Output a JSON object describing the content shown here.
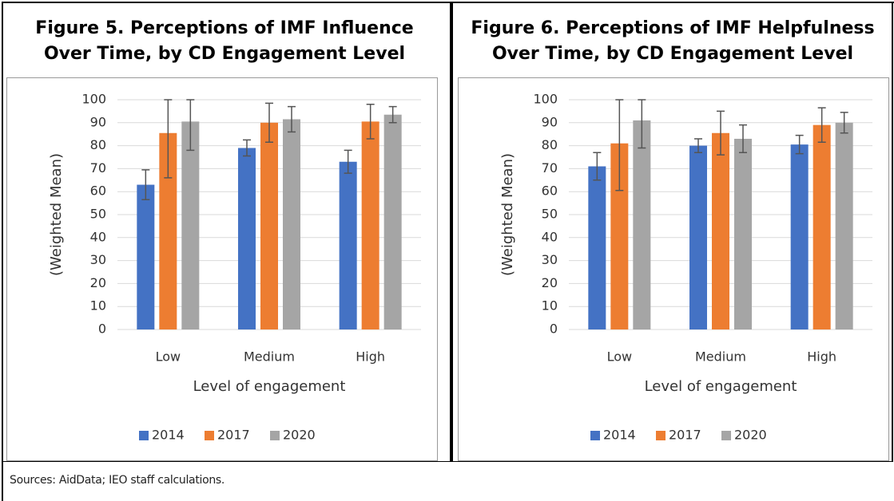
{
  "chart_data": [
    {
      "type": "bar",
      "title": "Figure 5. Perceptions of IMF Influence\nOver Time, by CD Engagement Level",
      "y_label": "(Weighted Mean)",
      "x_label": "Level of engagement",
      "categories": [
        "Low",
        "Medium",
        "High"
      ],
      "series": [
        {
          "name": "2014",
          "color": "#4472c4",
          "values": [
            63,
            79,
            73
          ],
          "errors": [
            6.5,
            3.5,
            5
          ]
        },
        {
          "name": "2017",
          "color": "#ed7d31",
          "values": [
            85.5,
            90,
            90.5
          ],
          "errors": [
            19.5,
            8.5,
            7.5
          ]
        },
        {
          "name": "2020",
          "color": "#a5a5a5",
          "values": [
            90.5,
            91.5,
            93.5
          ],
          "errors": [
            12.5,
            5.5,
            3.5
          ]
        }
      ],
      "ylim": [
        0,
        100
      ],
      "yticks": [
        0,
        10,
        20,
        30,
        40,
        50,
        60,
        70,
        80,
        90,
        100
      ],
      "grid": true,
      "legend": "bottom"
    },
    {
      "type": "bar",
      "title": "Figure 6. Perceptions of IMF Helpfulness\nOver Time, by CD Engagement Level",
      "y_label": "(Weighted Mean)",
      "x_label": "Level of engagement",
      "categories": [
        "Low",
        "Medium",
        "High"
      ],
      "series": [
        {
          "name": "2014",
          "color": "#4472c4",
          "values": [
            71,
            80,
            80.5
          ],
          "errors": [
            6,
            3,
            4
          ]
        },
        {
          "name": "2017",
          "color": "#ed7d31",
          "values": [
            81,
            85.5,
            89
          ],
          "errors": [
            20.5,
            9.5,
            7.5
          ]
        },
        {
          "name": "2020",
          "color": "#a5a5a5",
          "values": [
            91,
            83,
            90
          ],
          "errors": [
            12,
            6,
            4.5
          ]
        }
      ],
      "ylim": [
        0,
        100
      ],
      "yticks": [
        0,
        10,
        20,
        30,
        40,
        50,
        60,
        70,
        80,
        90,
        100
      ],
      "grid": true,
      "legend": "bottom"
    }
  ],
  "note": "Sources: AidData;  IEO staff calculations."
}
